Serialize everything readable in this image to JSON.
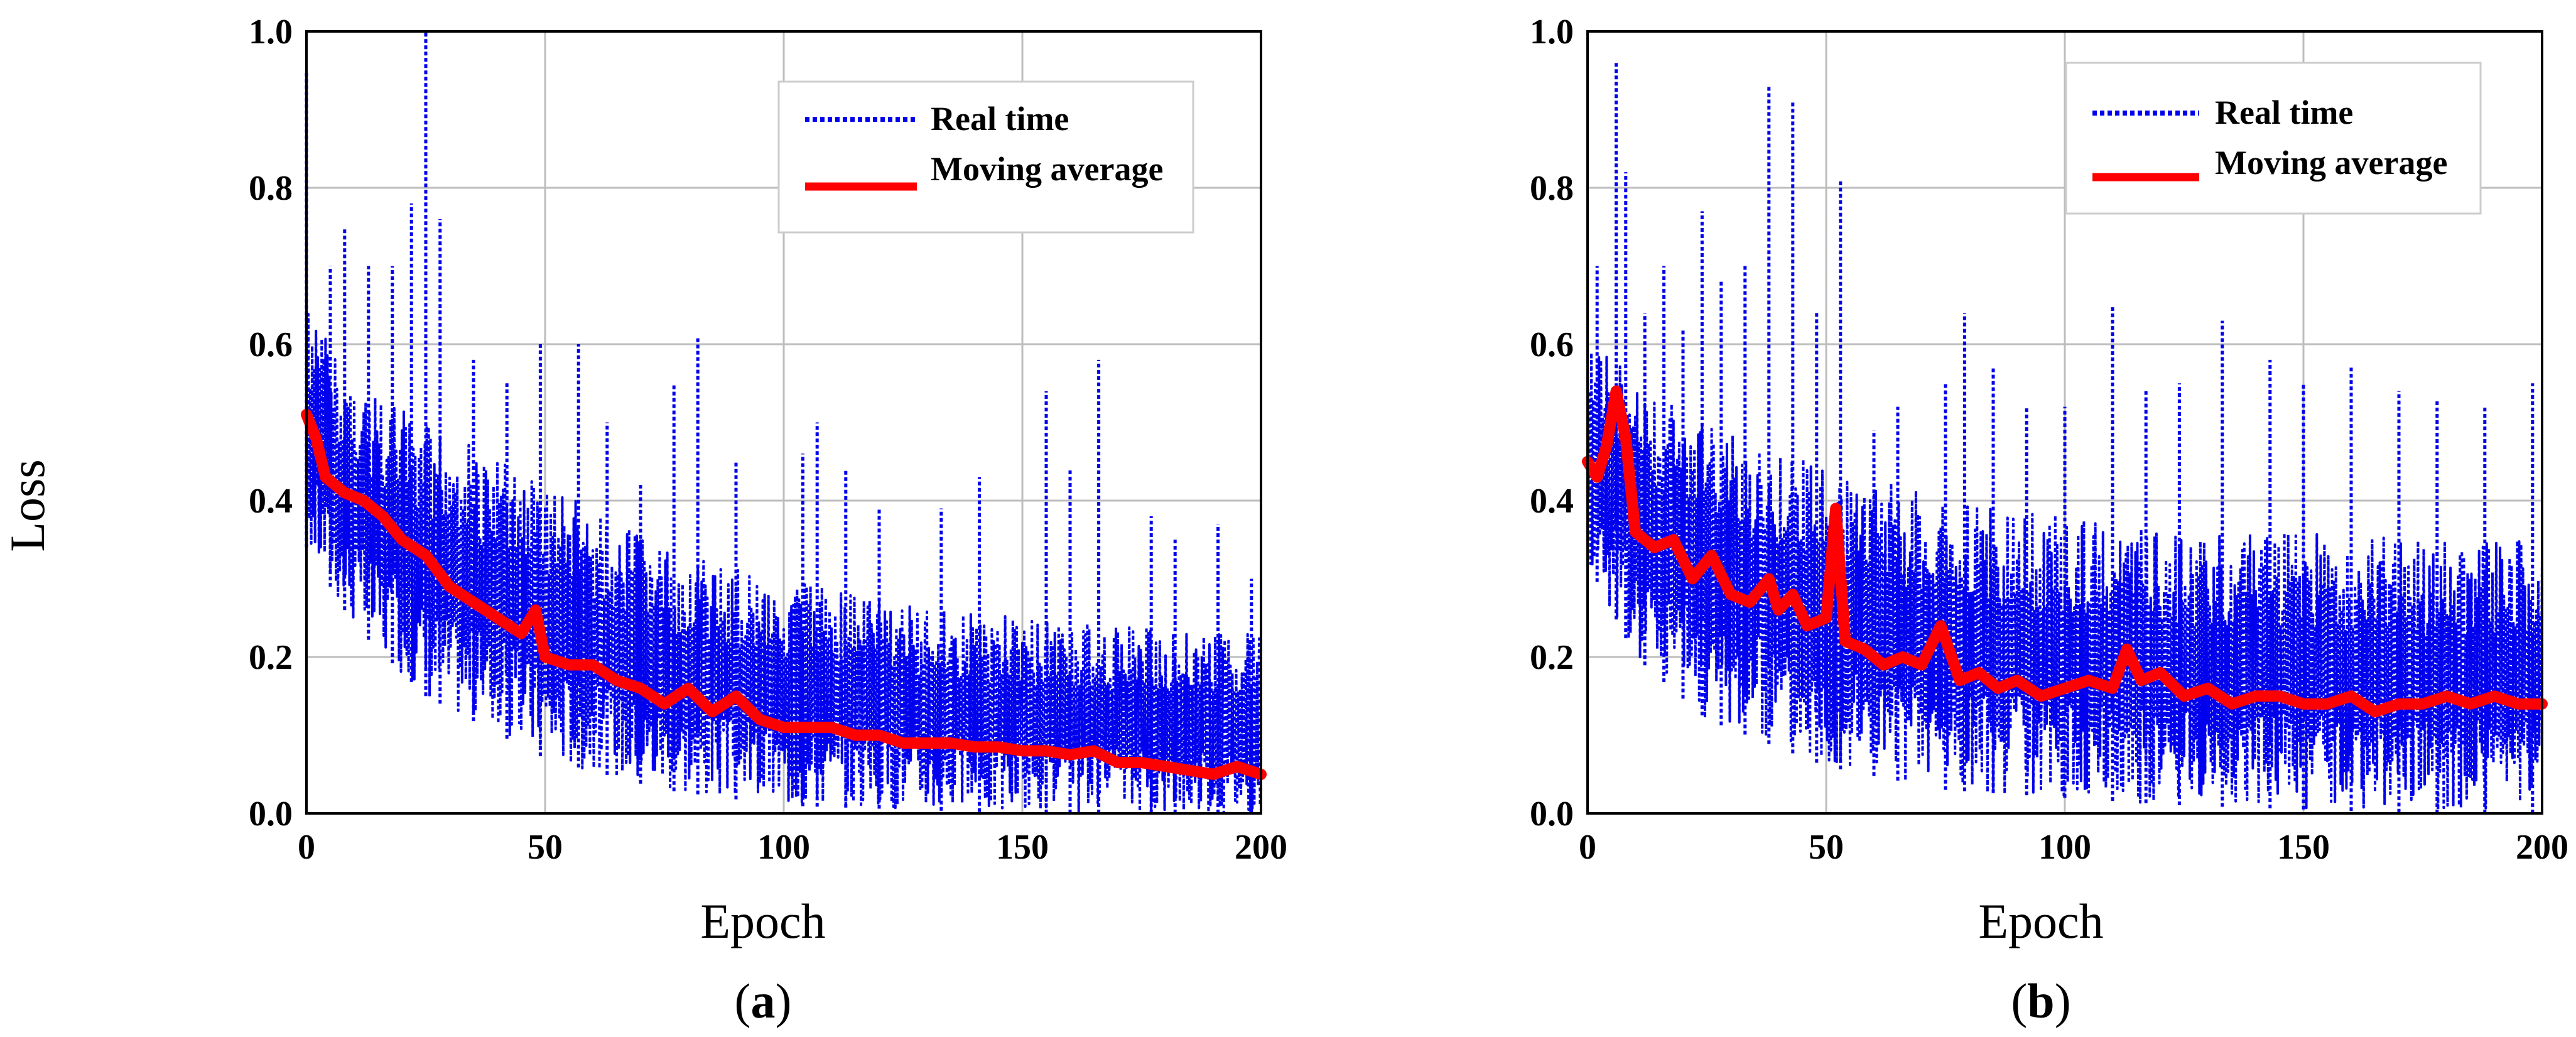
{
  "figure": {
    "shared_ylabel": "Loss"
  },
  "chart_data": [
    {
      "type": "line",
      "panel_label": "a",
      "xlabel": "Epoch",
      "ylabel": "Loss",
      "xlim": [
        0,
        200
      ],
      "ylim": [
        0.0,
        1.0
      ],
      "xticks": [
        0,
        50,
        100,
        150,
        200
      ],
      "yticks": [
        0.0,
        0.2,
        0.4,
        0.6,
        0.8,
        1.0
      ],
      "xtick_labels": [
        "0",
        "50",
        "100",
        "150",
        "200"
      ],
      "ytick_labels": [
        "0.0",
        "0.2",
        "0.4",
        "0.6",
        "0.8",
        "1.0"
      ],
      "grid": true,
      "legend_position": "top-right",
      "series": [
        {
          "name": "Real time",
          "style": "dotted",
          "color": "#0000ee",
          "band_upper": {
            "x": [
              0,
              10,
              25,
              50,
              75,
              100,
              125,
              150,
              175,
              200
            ],
            "y": [
              0.65,
              0.55,
              0.5,
              0.42,
              0.34,
              0.3,
              0.27,
              0.25,
              0.24,
              0.23
            ]
          },
          "band_lower": {
            "x": [
              0,
              10,
              25,
              50,
              75,
              100,
              125,
              150,
              175,
              200
            ],
            "y": [
              0.34,
              0.24,
              0.15,
              0.07,
              0.03,
              0.01,
              0.005,
              0.0,
              0.0,
              0.0
            ]
          },
          "spikes": [
            [
              0,
              0.95
            ],
            [
              5,
              0.7
            ],
            [
              8,
              0.75
            ],
            [
              13,
              0.7
            ],
            [
              18,
              0.7
            ],
            [
              22,
              0.78
            ],
            [
              25,
              1.0
            ],
            [
              28,
              0.76
            ],
            [
              35,
              0.58
            ],
            [
              42,
              0.55
            ],
            [
              49,
              0.6
            ],
            [
              57,
              0.6
            ],
            [
              63,
              0.5
            ],
            [
              70,
              0.42
            ],
            [
              77,
              0.55
            ],
            [
              82,
              0.61
            ],
            [
              90,
              0.45
            ],
            [
              104,
              0.46
            ],
            [
              107,
              0.5
            ],
            [
              113,
              0.44
            ],
            [
              120,
              0.39
            ],
            [
              133,
              0.39
            ],
            [
              141,
              0.43
            ],
            [
              155,
              0.54
            ],
            [
              160,
              0.44
            ],
            [
              166,
              0.58
            ],
            [
              177,
              0.38
            ],
            [
              182,
              0.35
            ],
            [
              191,
              0.37
            ],
            [
              198,
              0.3
            ]
          ]
        },
        {
          "name": "Moving average",
          "style": "solid",
          "color": "#ff0000",
          "x": [
            0,
            2,
            4,
            8,
            12,
            16,
            20,
            25,
            30,
            35,
            40,
            45,
            48,
            50,
            55,
            60,
            65,
            70,
            75,
            80,
            85,
            90,
            95,
            100,
            105,
            110,
            115,
            120,
            125,
            130,
            135,
            140,
            145,
            150,
            155,
            160,
            165,
            170,
            175,
            180,
            185,
            190,
            195,
            200
          ],
          "y": [
            0.51,
            0.48,
            0.43,
            0.41,
            0.4,
            0.38,
            0.35,
            0.33,
            0.29,
            0.27,
            0.25,
            0.23,
            0.26,
            0.2,
            0.19,
            0.19,
            0.17,
            0.16,
            0.14,
            0.16,
            0.13,
            0.15,
            0.12,
            0.11,
            0.11,
            0.11,
            0.1,
            0.1,
            0.09,
            0.09,
            0.09,
            0.085,
            0.085,
            0.08,
            0.08,
            0.075,
            0.08,
            0.065,
            0.065,
            0.06,
            0.055,
            0.05,
            0.06,
            0.05
          ]
        }
      ]
    },
    {
      "type": "line",
      "panel_label": "b",
      "xlabel": "Epoch",
      "ylabel": "Loss",
      "xlim": [
        0,
        200
      ],
      "ylim": [
        0.0,
        1.0
      ],
      "xticks": [
        0,
        50,
        100,
        150,
        200
      ],
      "yticks": [
        0.0,
        0.2,
        0.4,
        0.6,
        0.8,
        1.0
      ],
      "xtick_labels": [
        "0",
        "50",
        "100",
        "150",
        "200"
      ],
      "ytick_labels": [
        "0.0",
        "0.2",
        "0.4",
        "0.6",
        "0.8",
        "1.0"
      ],
      "grid": true,
      "legend_position": "top-right",
      "series": [
        {
          "name": "Real time",
          "style": "dotted",
          "color": "#0000ee",
          "band_upper": {
            "x": [
              0,
              10,
              25,
              50,
              75,
              100,
              125,
              150,
              175,
              200
            ],
            "y": [
              0.62,
              0.55,
              0.5,
              0.45,
              0.4,
              0.38,
              0.36,
              0.36,
              0.35,
              0.35
            ]
          },
          "band_lower": {
            "x": [
              0,
              10,
              25,
              50,
              75,
              100,
              125,
              150,
              175,
              200
            ],
            "y": [
              0.32,
              0.2,
              0.12,
              0.06,
              0.03,
              0.02,
              0.01,
              0.005,
              0.0,
              0.0
            ]
          },
          "spikes": [
            [
              2,
              0.7
            ],
            [
              6,
              0.96
            ],
            [
              8,
              0.82
            ],
            [
              12,
              0.64
            ],
            [
              16,
              0.7
            ],
            [
              20,
              0.62
            ],
            [
              24,
              0.77
            ],
            [
              28,
              0.68
            ],
            [
              33,
              0.7
            ],
            [
              38,
              0.93
            ],
            [
              43,
              0.91
            ],
            [
              48,
              0.64
            ],
            [
              53,
              0.81
            ],
            [
              60,
              0.49
            ],
            [
              65,
              0.52
            ],
            [
              75,
              0.55
            ],
            [
              79,
              0.64
            ],
            [
              85,
              0.57
            ],
            [
              92,
              0.52
            ],
            [
              100,
              0.52
            ],
            [
              110,
              0.65
            ],
            [
              117,
              0.54
            ],
            [
              124,
              0.55
            ],
            [
              133,
              0.63
            ],
            [
              143,
              0.58
            ],
            [
              150,
              0.55
            ],
            [
              160,
              0.57
            ],
            [
              170,
              0.54
            ],
            [
              178,
              0.53
            ],
            [
              188,
              0.52
            ],
            [
              198,
              0.55
            ]
          ]
        },
        {
          "name": "Moving average",
          "style": "solid",
          "color": "#ff0000",
          "x": [
            0,
            2,
            4,
            6,
            8,
            10,
            14,
            18,
            22,
            26,
            30,
            34,
            38,
            40,
            43,
            46,
            50,
            52,
            54,
            58,
            62,
            66,
            70,
            74,
            78,
            82,
            86,
            90,
            95,
            100,
            105,
            110,
            113,
            116,
            120,
            125,
            130,
            135,
            140,
            145,
            150,
            155,
            160,
            165,
            170,
            175,
            180,
            185,
            190,
            195,
            200
          ],
          "y": [
            0.45,
            0.43,
            0.47,
            0.54,
            0.48,
            0.36,
            0.34,
            0.35,
            0.3,
            0.33,
            0.28,
            0.27,
            0.3,
            0.26,
            0.28,
            0.24,
            0.25,
            0.39,
            0.22,
            0.21,
            0.19,
            0.2,
            0.19,
            0.24,
            0.17,
            0.18,
            0.16,
            0.17,
            0.15,
            0.16,
            0.17,
            0.16,
            0.21,
            0.17,
            0.18,
            0.15,
            0.16,
            0.14,
            0.15,
            0.15,
            0.14,
            0.14,
            0.15,
            0.13,
            0.14,
            0.14,
            0.15,
            0.14,
            0.15,
            0.14,
            0.14
          ]
        }
      ]
    }
  ]
}
